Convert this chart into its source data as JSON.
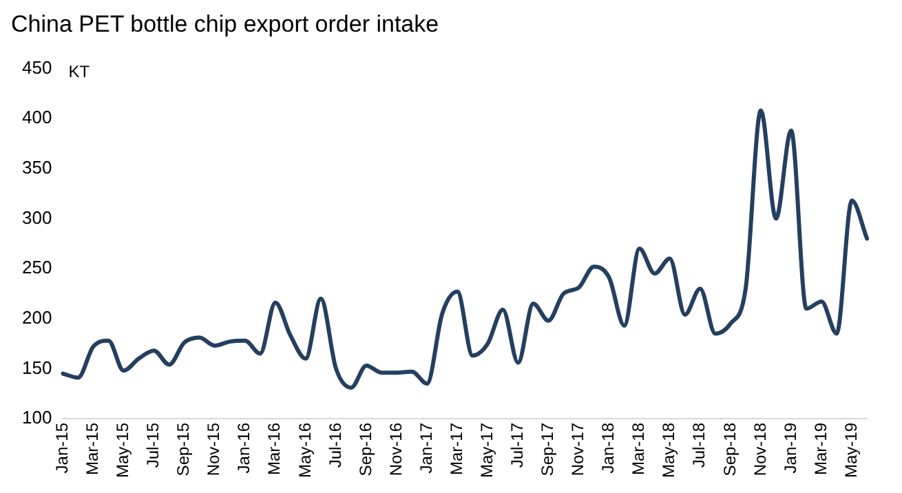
{
  "chart_data": {
    "type": "line",
    "title": "China PET bottle chip export order intake",
    "ylabel": "KT",
    "categories": [
      "Jan-15",
      null,
      "Mar-15",
      null,
      "May-15",
      null,
      "Jul-15",
      null,
      "Sep-15",
      null,
      "Nov-15",
      null,
      "Jan-16",
      null,
      "Mar-16",
      null,
      "May-16",
      null,
      "Jul-16",
      null,
      "Sep-16",
      null,
      "Nov-16",
      null,
      "Jan-17",
      null,
      "Mar-17",
      null,
      "May-17",
      null,
      "Jul-17",
      null,
      "Sep-17",
      null,
      "Nov-17",
      null,
      "Jan-18",
      null,
      "Mar-18",
      null,
      "May-18",
      null,
      "Jul-18",
      null,
      "Sep-18",
      null,
      "Nov-18",
      null,
      "Jan-19",
      null,
      "Mar-19",
      null,
      "May-19",
      null
    ],
    "series": [
      {
        "color": "#243f60",
        "values": [
          145,
          141,
          172,
          178,
          148,
          160,
          168,
          154,
          176,
          181,
          173,
          177,
          178,
          165,
          216,
          183,
          160,
          220,
          150,
          131,
          153,
          146,
          146,
          147,
          135,
          205,
          227,
          163,
          175,
          209,
          156,
          215,
          198,
          225,
          231,
          252,
          241,
          193,
          270,
          245,
          260,
          204,
          230,
          185,
          195,
          230,
          408,
          300,
          388,
          210,
          217,
          185,
          318,
          280
        ]
      }
    ],
    "ylim": [
      100,
      450
    ],
    "yticks": [
      100,
      150,
      200,
      250,
      300,
      350,
      400,
      450
    ],
    "grid": false,
    "legend": false,
    "marker": "none",
    "line_style": "solid"
  }
}
